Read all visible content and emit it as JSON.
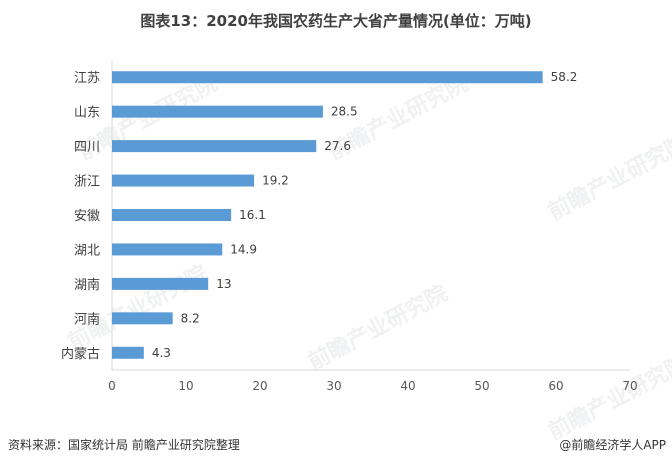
{
  "title": "图表13：2020年我国农药生产大省产量情况(单位：万吨)",
  "footer": {
    "source": "资料来源：国家统计局 前瞻产业研究院整理",
    "brand": "@前瞻经济学人APP"
  },
  "watermark": "前瞻产业研究院",
  "colors": {
    "bar": "#5b9bd5",
    "axis": "#d9d9d9"
  },
  "chart_data": {
    "type": "bar",
    "orientation": "horizontal",
    "categories": [
      "江苏",
      "山东",
      "四川",
      "浙江",
      "安徽",
      "湖北",
      "湖南",
      "河南",
      "内蒙古"
    ],
    "values": [
      58.2,
      28.5,
      27.6,
      19.2,
      16.1,
      14.9,
      13,
      8.2,
      4.3
    ],
    "value_labels": [
      "58.2",
      "28.5",
      "27.6",
      "19.2",
      "16.1",
      "14.9",
      "13",
      "8.2",
      "4.3"
    ],
    "x_ticks": [
      0,
      10,
      20,
      30,
      40,
      50,
      60,
      70
    ],
    "xlim": [
      0,
      70
    ],
    "grid": false,
    "legend": "none"
  }
}
